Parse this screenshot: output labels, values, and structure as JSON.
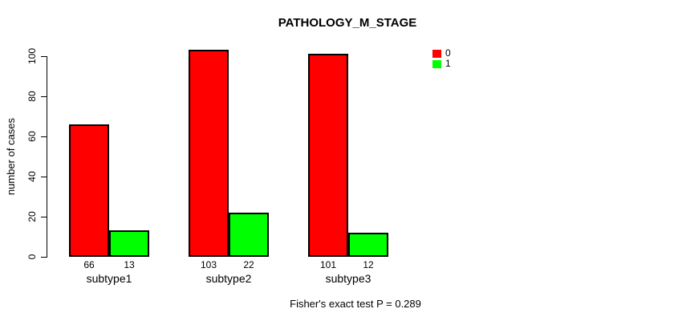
{
  "chart_data": {
    "type": "bar",
    "title": "PATHOLOGY_M_STAGE",
    "ylabel": "number of cases",
    "xlabel": "",
    "categories": [
      "subtype1",
      "subtype2",
      "subtype3"
    ],
    "series": [
      {
        "name": "0",
        "color": "#ff0000",
        "values": [
          66,
          103,
          101
        ]
      },
      {
        "name": "1",
        "color": "#00ff00",
        "values": [
          13,
          22,
          12
        ]
      }
    ],
    "bar_value_labels": [
      [
        "66",
        "103",
        "101"
      ],
      [
        "13",
        "22",
        "12"
      ]
    ],
    "yticks": [
      "0",
      "20",
      "40",
      "60",
      "80",
      "100"
    ],
    "ylim": [
      0,
      100
    ],
    "grid": false,
    "legend": {
      "position": "top-right",
      "entries": [
        {
          "label": "0",
          "color": "#ff0000"
        },
        {
          "label": "1",
          "color": "#00ff00"
        }
      ]
    },
    "annotation": "Fisher's exact test P = 0.289",
    "colors": {
      "bar_border": "#000000",
      "axis": "#000000",
      "background": "#ffffff"
    }
  }
}
